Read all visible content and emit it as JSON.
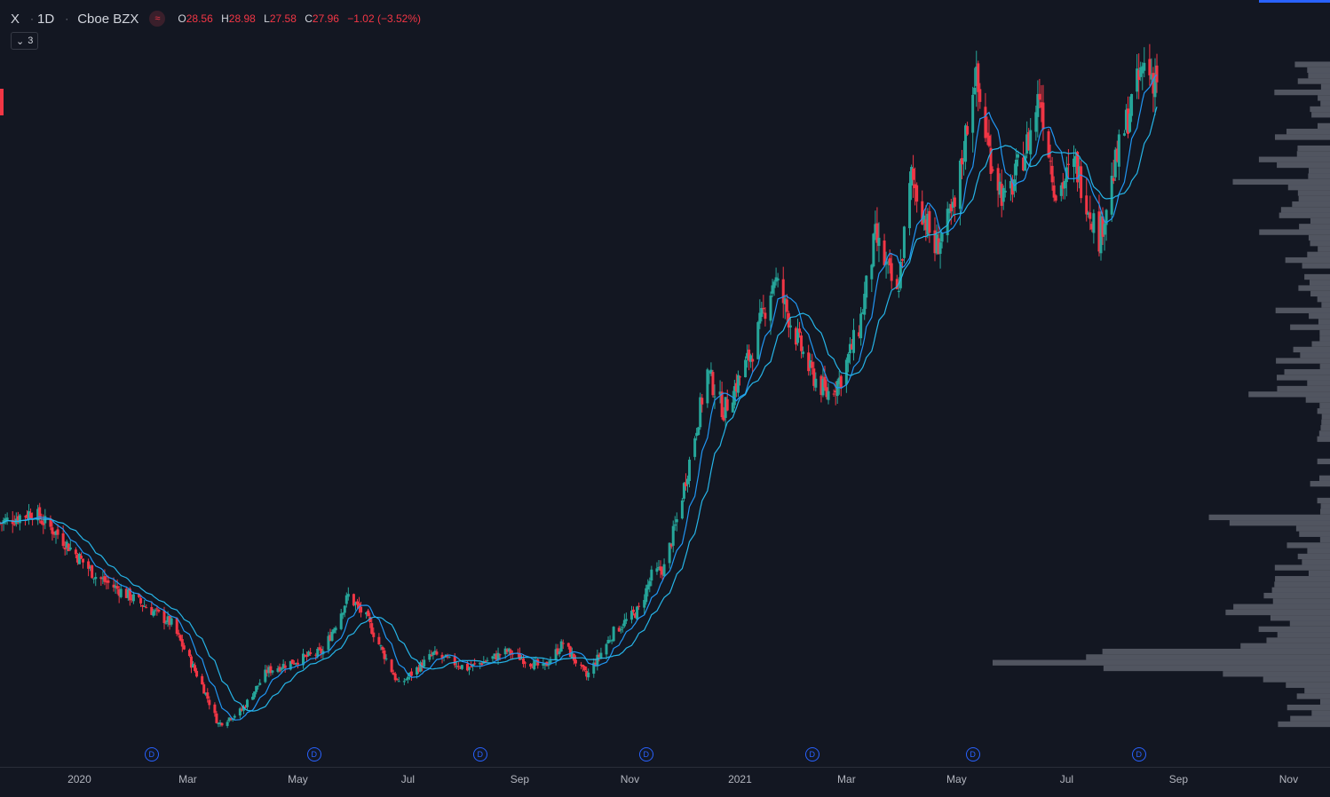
{
  "header": {
    "symbol": "X",
    "timeframe": "1D",
    "exchange": "Cboe BZX",
    "wave_icon": "≈",
    "ohlc": {
      "o_label": "O",
      "o": "28.56",
      "h_label": "H",
      "h": "28.98",
      "l_label": "L",
      "l": "27.58",
      "c_label": "C",
      "c": "27.96",
      "change": "−1.02 (−3.52%)"
    },
    "studies_count": "3"
  },
  "colors": {
    "background": "#131722",
    "up": "#26a69a",
    "down": "#f23645",
    "ma_fast": "#2196f3",
    "ma_slow": "#26b5e8",
    "volume_profile": "#5d606b",
    "accent": "#2962ff"
  },
  "dividend_marker": "D",
  "chart_data": {
    "type": "candlestick",
    "x_tick_labels": [
      "2020",
      "Mar",
      "May",
      "Jul",
      "Sep",
      "Nov",
      "2021",
      "Mar",
      "May",
      "Jul",
      "Sep",
      "Nov"
    ],
    "dividend_months": [
      "2020-02",
      "2020-05",
      "2020-08",
      "2020-11",
      "2021-02",
      "2021-05",
      "2021-08"
    ],
    "anchors": [
      [
        "2019-11-18",
        12.2
      ],
      [
        "2019-12-06",
        12.6
      ],
      [
        "2019-12-20",
        11.8
      ],
      [
        "2020-01-10",
        10.3
      ],
      [
        "2020-01-31",
        9.5
      ],
      [
        "2020-02-21",
        8.6
      ],
      [
        "2020-03-09",
        6.4
      ],
      [
        "2020-03-18",
        5.0
      ],
      [
        "2020-03-31",
        5.5
      ],
      [
        "2020-04-14",
        6.9
      ],
      [
        "2020-05-01",
        7.3
      ],
      [
        "2020-05-15",
        7.6
      ],
      [
        "2020-05-29",
        9.6
      ],
      [
        "2020-06-08",
        8.8
      ],
      [
        "2020-06-26",
        6.4
      ],
      [
        "2020-07-15",
        7.5
      ],
      [
        "2020-08-03",
        7.0
      ],
      [
        "2020-08-25",
        7.6
      ],
      [
        "2020-09-14",
        7.0
      ],
      [
        "2020-09-25",
        7.9
      ],
      [
        "2020-10-08",
        6.7
      ],
      [
        "2020-10-23",
        8.3
      ],
      [
        "2020-11-06",
        9.1
      ],
      [
        "2020-11-13",
        10.3
      ],
      [
        "2020-11-20",
        10.6
      ],
      [
        "2020-11-27",
        12.3
      ],
      [
        "2020-12-04",
        14.4
      ],
      [
        "2020-12-14",
        17.6
      ],
      [
        "2020-12-23",
        16.2
      ],
      [
        "2021-01-08",
        18.4
      ],
      [
        "2021-01-20",
        21.0
      ],
      [
        "2021-01-29",
        19.4
      ],
      [
        "2021-02-09",
        17.6
      ],
      [
        "2021-02-18",
        16.8
      ],
      [
        "2021-02-26",
        17.4
      ],
      [
        "2021-03-08",
        19.2
      ],
      [
        "2021-03-17",
        22.4
      ],
      [
        "2021-03-29",
        20.3
      ],
      [
        "2021-04-06",
        24.6
      ],
      [
        "2021-04-19",
        22.0
      ],
      [
        "2021-04-30",
        23.4
      ],
      [
        "2021-05-11",
        28.3
      ],
      [
        "2021-05-19",
        25.5
      ],
      [
        "2021-05-28",
        23.6
      ],
      [
        "2021-06-10",
        25.9
      ],
      [
        "2021-06-16",
        27.6
      ],
      [
        "2021-06-25",
        24.0
      ],
      [
        "2021-07-06",
        25.0
      ],
      [
        "2021-07-19",
        22.4
      ],
      [
        "2021-07-28",
        25.0
      ],
      [
        "2021-08-05",
        27.0
      ],
      [
        "2021-08-13",
        28.6
      ],
      [
        "2021-08-20",
        27.96
      ]
    ]
  }
}
